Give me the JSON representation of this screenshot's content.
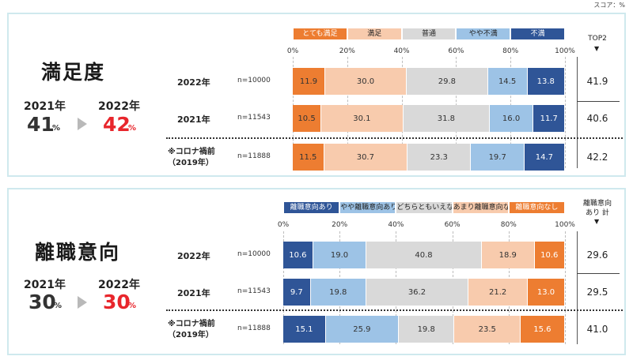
{
  "unit_note": "スコア：%",
  "colors": {
    "satisfaction": [
      "#ed7d31",
      "#f8cbad",
      "#d9d9d9",
      "#9dc3e6",
      "#2f5597"
    ],
    "turnover": [
      "#2f5597",
      "#9dc3e6",
      "#d9d9d9",
      "#f8cbad",
      "#ed7d31"
    ]
  },
  "panels": [
    {
      "title": "満足度",
      "year_prev": "2021年",
      "year_curr": "2022年",
      "pct_prev": "41",
      "pct_curr": "42",
      "pct_unit": "%",
      "ticks": [
        "0%",
        "20%",
        "40%",
        "60%",
        "80%",
        "100%"
      ],
      "right_header": "TOP2",
      "right_arrow": "▼",
      "rows": [
        {
          "label": "2022年",
          "n": "n=10000",
          "right": "41.9"
        },
        {
          "label": "2021年",
          "n": "n=11543",
          "right": "40.6"
        },
        {
          "label": "※コロナ禍前",
          "label2": "（2019年）",
          "n": "n=11888",
          "right": "42.2"
        }
      ]
    },
    {
      "title": "離職意向",
      "year_prev": "2021年",
      "year_curr": "2022年",
      "pct_prev": "30",
      "pct_curr": "30",
      "pct_unit": "%",
      "ticks": [
        "0%",
        "20%",
        "40%",
        "60%",
        "80%",
        "100%"
      ],
      "right_header": "離職意向",
      "right_header2": "あり 計",
      "right_arrow": "▼",
      "rows": [
        {
          "label": "2022年",
          "n": "n=10000",
          "right": "29.6"
        },
        {
          "label": "2021年",
          "n": "n=11543",
          "right": "29.5"
        },
        {
          "label": "※コロナ禍前",
          "label2": "（2019年）",
          "n": "n=11888",
          "right": "41.0"
        }
      ]
    }
  ],
  "chart_data": [
    {
      "type": "bar",
      "stacked": true,
      "orientation": "horizontal",
      "title": "満足度",
      "categories": [
        "2022年",
        "2021年",
        "※コロナ禍前（2019年）"
      ],
      "xlim": [
        0,
        100
      ],
      "series": [
        {
          "name": "とても満足",
          "values": [
            11.9,
            10.5,
            11.5
          ]
        },
        {
          "name": "満足",
          "values": [
            30.0,
            30.1,
            30.7
          ]
        },
        {
          "name": "普通",
          "values": [
            29.8,
            31.8,
            23.3
          ]
        },
        {
          "name": "やや不満",
          "values": [
            14.5,
            16.0,
            19.7
          ]
        },
        {
          "name": "不満",
          "values": [
            13.8,
            11.7,
            14.7
          ]
        }
      ]
    },
    {
      "type": "bar",
      "stacked": true,
      "orientation": "horizontal",
      "title": "離職意向",
      "categories": [
        "2022年",
        "2021年",
        "※コロナ禍前（2019年）"
      ],
      "xlim": [
        0,
        100
      ],
      "series": [
        {
          "name": "離職意向あり",
          "values": [
            10.6,
            9.7,
            15.1
          ]
        },
        {
          "name": "やや離職意向あり",
          "values": [
            19.0,
            19.8,
            25.9
          ]
        },
        {
          "name": "どちらともいえない",
          "values": [
            40.8,
            36.2,
            19.8
          ]
        },
        {
          "name": "あまり離職意向なし",
          "values": [
            18.9,
            21.2,
            23.5
          ]
        },
        {
          "name": "離職意向なし",
          "values": [
            10.6,
            13.0,
            15.6
          ]
        }
      ]
    }
  ]
}
